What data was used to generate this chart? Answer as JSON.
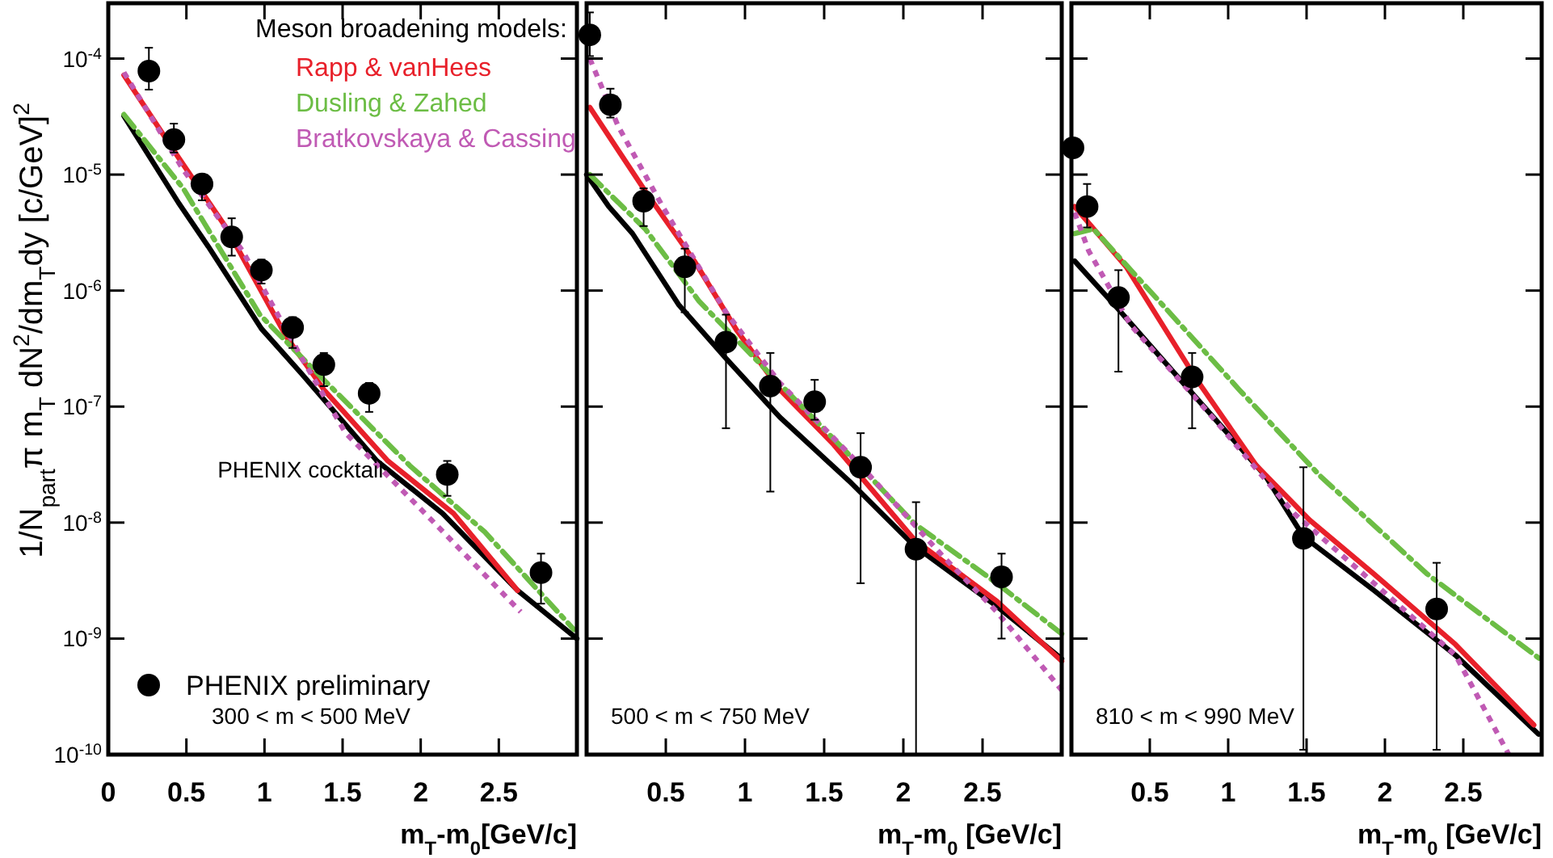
{
  "chart_data": [
    {
      "type": "scatter",
      "ylabel": "1/N$_{part}$π m$_{T}$ dN$^{2}$/dm$_{T}$dy [c/GeV]$^{2}$",
      "xlabel": "m$_{T}$-m$_{0}$[GeV/c]",
      "legend_title": "Meson broadening models:",
      "legend": "bottom left",
      "log": "y",
      "xlim": [
        0,
        3
      ],
      "xticks": [
        0,
        0.5,
        1,
        1.5,
        2,
        2.5
      ],
      "ylim": [
        1e-10,
        0.0003
      ],
      "yticks": [
        {
          "value": 1e-10,
          "label": "10$^{-10}$"
        },
        {
          "value": 1e-09,
          "label": "10$^{-9}$"
        },
        {
          "value": 1e-08,
          "label": "10$^{-8}$"
        },
        {
          "value": 1e-07,
          "label": "10$^{-7}$"
        },
        {
          "value": 1e-06,
          "label": "10$^{-6}$"
        },
        {
          "value": 1e-05,
          "label": "10$^{-5}$"
        },
        {
          "value": 0.0001,
          "label": "10$^{-4}$"
        }
      ],
      "annotations": [
        "300 < m < 500 MeV"
      ],
      "series": [
        {
          "type": "line",
          "name": "PHENIX cocktail",
          "color": "#000000",
          "line_style": "solid",
          "x": [
            0.1,
            0.45,
            0.64,
            0.98,
            1.24,
            1.72,
            2.14,
            2.62,
            3.0
          ],
          "values": [
            3.2e-05,
            5.7e-06,
            2.4e-06,
            4.7e-07,
            1.9e-07,
            3.4e-08,
            1.2e-08,
            2.6e-09,
            1e-09
          ]
        },
        {
          "type": "line",
          "name": "Rapp & vanHees",
          "color": "#e8202a",
          "line_style": "solid",
          "x": [
            0.1,
            0.45,
            0.76,
            1.14,
            1.38,
            1.79,
            2.21,
            2.62
          ],
          "values": [
            7.2e-05,
            1.4e-05,
            3.4e-06,
            4e-07,
            1.4e-07,
            3.4e-08,
            1.2e-08,
            2.6e-09
          ]
        },
        {
          "type": "line",
          "name": "Dusling & Zahed",
          "color": "#6cbd45",
          "line_style": "dashed",
          "x": [
            0.1,
            0.48,
            0.97,
            1.38,
            1.93,
            2.41,
            2.98
          ],
          "values": [
            3.3e-05,
            7.6e-06,
            6.2e-07,
            1.7e-07,
            3.1e-08,
            8.3e-09,
            1.2e-09
          ]
        },
        {
          "type": "line",
          "name": "Bratkovskaya & Cassing",
          "color": "#c05ab4",
          "line_style": "dotted",
          "x": [
            0.1,
            0.48,
            0.86,
            1.24,
            1.52,
            2.07,
            2.64
          ],
          "values": [
            7.6e-05,
            1.1e-05,
            2.2e-06,
            2.6e-07,
            5.9e-08,
            1.05e-08,
            1.7e-09
          ]
        },
        {
          "type": "scatter",
          "name": "PHENIX preliminary",
          "color": "#000000",
          "marker": "circle",
          "x": [
            0.26,
            0.42,
            0.6,
            0.79,
            0.98,
            1.18,
            1.38,
            1.67,
            2.17,
            2.77
          ],
          "values": [
            7.8e-05,
            2e-05,
            8.3e-06,
            2.9e-06,
            1.5e-06,
            4.8e-07,
            2.3e-07,
            1.3e-07,
            2.6e-08,
            3.7e-09
          ],
          "errors": [
            [
              5.4e-05,
              0.000124
            ],
            [
              1.55e-05,
              2.75e-05
            ],
            [
              6e-06,
              1e-05
            ],
            [
              2e-06,
              4.2e-06
            ],
            [
              1.15e-06,
              1.85e-06
            ],
            [
              3.2e-07,
              5.9e-07
            ],
            [
              1.5e-07,
              2.9e-07
            ],
            [
              9e-08,
              1.6e-07
            ],
            [
              1.7e-08,
              3.4e-08
            ],
            [
              2e-09,
              5.4e-09
            ]
          ]
        }
      ]
    },
    {
      "type": "scatter",
      "xlabel": "m$_{T}$-m$_{0}$ [GeV/c]",
      "log": "y",
      "tick_labels": "x",
      "xlim": [
        0,
        3
      ],
      "xticks": [
        0.5,
        1,
        1.5,
        2,
        2.5
      ],
      "ylim": [
        1e-10,
        0.0003
      ],
      "yticks": [
        {
          "value": 1e-10,
          "label": null
        },
        {
          "value": 1e-09,
          "label": null
        },
        {
          "value": 1e-08,
          "label": null
        },
        {
          "value": 1e-07,
          "label": null
        },
        {
          "value": 1e-06,
          "label": null
        },
        {
          "value": 1e-05,
          "label": null
        },
        {
          "value": 0.0001,
          "label": null
        }
      ],
      "annotations": [
        "500 < m < 750 MeV"
      ],
      "series": [
        {
          "type": "line",
          "color": "#000000",
          "line_style": "solid",
          "x": [
            0,
            0.14,
            0.29,
            0.58,
            0.88,
            1.22,
            1.67,
            2.07,
            2.59,
            3.0
          ],
          "values": [
            1e-05,
            5.3e-06,
            3.1e-06,
            7.6e-07,
            2.6e-07,
            8.1e-08,
            2.2e-08,
            6.3e-09,
            1.9e-09,
            6.7e-10
          ]
        },
        {
          "type": "line",
          "color": "#e8202a",
          "line_style": "solid",
          "x": [
            0.02,
            0.37,
            0.68,
            0.95,
            1.22,
            1.56,
            2.07,
            2.59,
            3.0
          ],
          "values": [
            3.8e-05,
            7.2e-06,
            1.8e-06,
            4.5e-07,
            1.4e-07,
            4.7e-08,
            7.1e-09,
            2.1e-09,
            6.4e-10
          ]
        },
        {
          "type": "line",
          "color": "#6cbd45",
          "line_style": "dashed",
          "x": [
            0.02,
            0.37,
            0.71,
            1.16,
            1.63,
            2.07,
            2.59,
            3.0
          ],
          "values": [
            1e-05,
            3.4e-06,
            8.1e-07,
            1.9e-07,
            4.2e-08,
            9.8e-09,
            3e-09,
            1.1e-09
          ]
        },
        {
          "type": "line",
          "color": "#c05ab4",
          "line_style": "dotted",
          "x": [
            0.02,
            0.2,
            0.48,
            0.88,
            1.22,
            1.73,
            2.24,
            2.59,
            3.0
          ],
          "values": [
            0.0001,
            2.6e-05,
            5.3e-06,
            6.5e-07,
            1.6e-07,
            3.1e-08,
            5.3e-09,
            1.7e-09,
            3.6e-10
          ]
        },
        {
          "type": "scatter",
          "color": "#000000",
          "marker": "circle",
          "x": [
            0.02,
            0.15,
            0.36,
            0.62,
            0.88,
            1.16,
            1.44,
            1.73,
            2.08,
            2.62
          ],
          "values": [
            0.00016,
            4e-05,
            5.9e-06,
            1.6e-06,
            3.6e-07,
            1.5e-07,
            1.1e-07,
            3e-08,
            5.9e-09,
            3.4e-09
          ],
          "errors": [
            [
              0.000105,
              0.00025
            ],
            [
              3.1e-05,
              5.5e-05
            ],
            [
              3.6e-06,
              7.6e-06
            ],
            [
              6.5e-07,
              2.3e-06
            ],
            [
              6.5e-08,
              6.2e-07
            ],
            [
              1.85e-08,
              2.9e-07
            ],
            [
              7.7e-08,
              1.7e-07
            ],
            [
              3e-09,
              5.9e-08
            ],
            [
              1e-10,
              1.5e-08
            ],
            [
              1e-09,
              5.4e-09
            ]
          ]
        }
      ]
    },
    {
      "type": "scatter",
      "xlabel": "m$_{T}$-m$_{0}$ [GeV/c]",
      "log": "y",
      "tick_labels": "x",
      "xlim": [
        0,
        3
      ],
      "xticks": [
        0.5,
        1,
        1.5,
        2,
        2.5
      ],
      "ylim": [
        1e-10,
        0.0003
      ],
      "yticks": [
        {
          "value": 1e-10,
          "label": null
        },
        {
          "value": 1e-09,
          "label": null
        },
        {
          "value": 1e-08,
          "label": null
        },
        {
          "value": 1e-07,
          "label": null
        },
        {
          "value": 1e-06,
          "label": null
        },
        {
          "value": 1e-05,
          "label": null
        },
        {
          "value": 0.0001,
          "label": null
        }
      ],
      "annotations": [
        "810 < m < 990 MeV"
      ],
      "series": [
        {
          "type": "line",
          "color": "#000000",
          "line_style": "solid",
          "x": [
            0.02,
            0.3,
            0.73,
            1.24,
            1.48,
            1.93,
            2.45,
            2.98
          ],
          "values": [
            1.8e-06,
            6.9e-07,
            1.5e-07,
            2.5e-08,
            7.6e-09,
            2.6e-09,
            7.2e-10,
            1.5e-10
          ]
        },
        {
          "type": "line",
          "color": "#e8202a",
          "line_style": "solid",
          "x": [
            0.02,
            0.35,
            0.8,
            1.18,
            1.52,
            1.93,
            2.45,
            2.95
          ],
          "values": [
            5.3e-06,
            1.6e-06,
            1.7e-07,
            3.1e-08,
            1.05e-08,
            3.6e-09,
            8.9e-10,
            1.8e-10
          ]
        },
        {
          "type": "line",
          "color": "#6cbd45",
          "line_style": "dashed",
          "x": [
            0.02,
            0.14,
            0.56,
            1.07,
            1.59,
            2.27,
            3.0
          ],
          "values": [
            3.1e-06,
            3.4e-06,
            8.1e-07,
            1.4e-07,
            2.5e-08,
            3.6e-09,
            6.5e-10
          ]
        },
        {
          "type": "line",
          "color": "#c05ab4",
          "line_style": "dotted",
          "x": [
            0.02,
            0.11,
            0.38,
            0.9,
            1.42,
            1.93,
            2.45,
            2.79
          ],
          "values": [
            4.7e-06,
            2.2e-06,
            5e-07,
            8.1e-08,
            1.2e-08,
            3e-09,
            7.2e-10,
            1e-10
          ]
        },
        {
          "type": "scatter",
          "color": "#000000",
          "marker": "circle",
          "x": [
            0.01,
            0.1,
            0.3,
            0.77,
            1.48,
            2.33
          ],
          "values": [
            1.7e-05,
            5.3e-06,
            8.7e-07,
            1.8e-07,
            7.3e-09,
            1.8e-09
          ],
          "errors": [
            null,
            [
              3.5e-06,
              8.3e-06
            ],
            [
              2e-07,
              1.5e-06
            ],
            [
              6.5e-08,
              2.9e-07
            ],
            [
              1.1e-10,
              3e-08
            ],
            [
              1.1e-10,
              4.5e-09
            ]
          ]
        }
      ]
    }
  ]
}
